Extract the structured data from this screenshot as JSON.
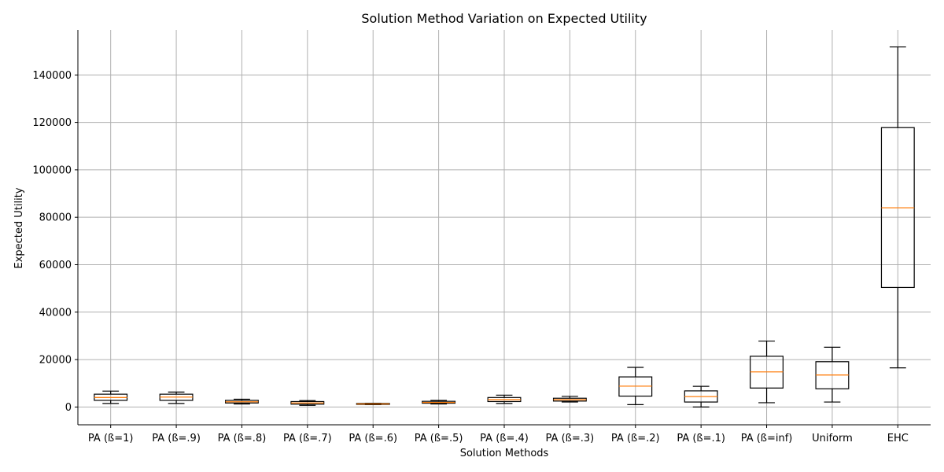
{
  "chart_data": {
    "type": "box",
    "title": "Solution Method Variation on Expected Utility",
    "xlabel": "Solution Methods",
    "ylabel": "Expected Utility",
    "ylim": [
      -7500,
      159000
    ],
    "yticks": [
      0,
      20000,
      40000,
      60000,
      80000,
      100000,
      120000,
      140000
    ],
    "grid": true,
    "median_color": "#ff7f0e",
    "box_color": "#000000",
    "series": [
      {
        "category": "PA (ß=1)",
        "min": 1500,
        "q1": 2800,
        "median": 4000,
        "q3": 5400,
        "max": 6700
      },
      {
        "category": "PA (ß=.9)",
        "min": 1500,
        "q1": 2800,
        "median": 4200,
        "q3": 5400,
        "max": 6300
      },
      {
        "category": "PA (ß=.8)",
        "min": 1300,
        "q1": 1700,
        "median": 2200,
        "q3": 2800,
        "max": 3300
      },
      {
        "category": "PA (ß=.7)",
        "min": 700,
        "q1": 1200,
        "median": 1700,
        "q3": 2300,
        "max": 2700
      },
      {
        "category": "PA (ß=.6)",
        "min": 1000,
        "q1": 1100,
        "median": 1300,
        "q3": 1500,
        "max": 1600
      },
      {
        "category": "PA (ß=.5)",
        "min": 1300,
        "q1": 1600,
        "median": 1900,
        "q3": 2400,
        "max": 2800
      },
      {
        "category": "PA (ß=.4)",
        "min": 1500,
        "q1": 2300,
        "median": 3100,
        "q3": 4000,
        "max": 5000
      },
      {
        "category": "PA (ß=.3)",
        "min": 2100,
        "q1": 2500,
        "median": 3100,
        "q3": 3700,
        "max": 4500
      },
      {
        "category": "PA (ß=.2)",
        "min": 1000,
        "q1": 4600,
        "median": 8800,
        "q3": 12700,
        "max": 16700
      },
      {
        "category": "PA (ß=.1)",
        "min": 0,
        "q1": 2100,
        "median": 4400,
        "q3": 6800,
        "max": 8700
      },
      {
        "category": "PA (ß=inf)",
        "min": 1800,
        "q1": 8000,
        "median": 14800,
        "q3": 21400,
        "max": 27800
      },
      {
        "category": "Uniform",
        "min": 2100,
        "q1": 7700,
        "median": 13500,
        "q3": 19100,
        "max": 25200
      },
      {
        "category": "EHC",
        "min": 16500,
        "q1": 50400,
        "median": 84000,
        "q3": 117800,
        "max": 151800
      }
    ]
  }
}
